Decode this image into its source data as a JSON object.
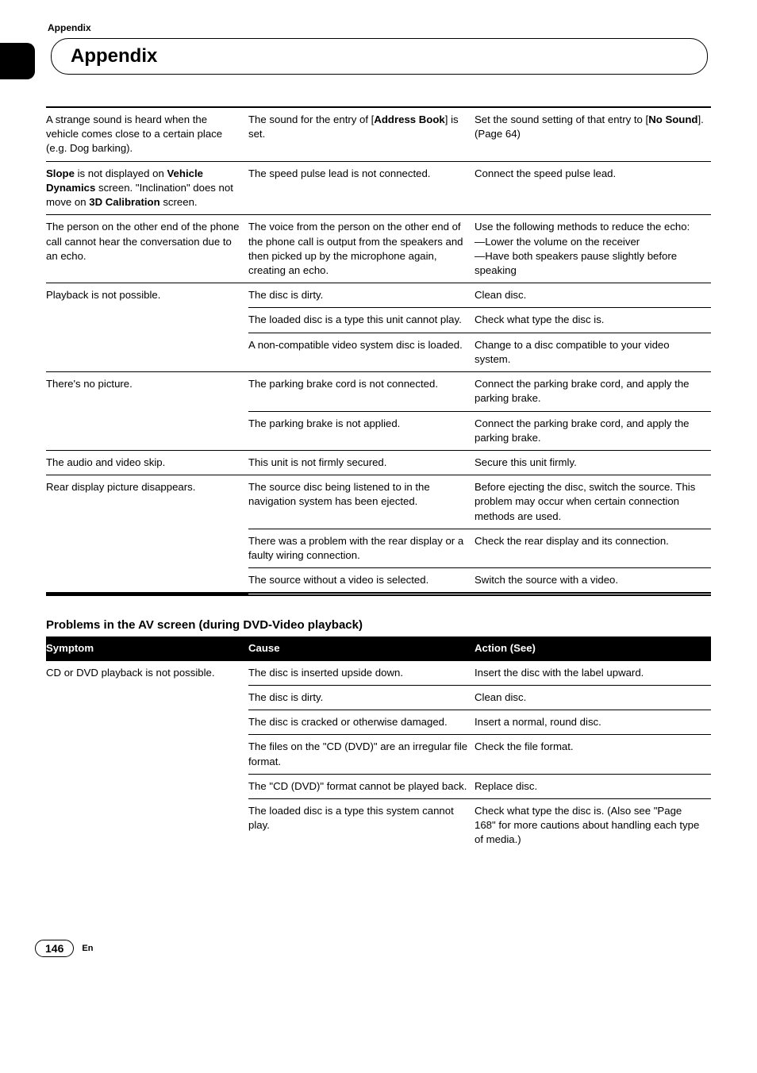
{
  "top_label": "Appendix",
  "title": "Appendix",
  "table1": {
    "rows": [
      {
        "sym": "A strange sound is heard when the vehicle comes close to a certain place (e.g. Dog barking).",
        "cause_html": "The sound for the entry of [<b>Address Book</b>] is set.",
        "action_html": "Set the sound setting of that entry to [<b>No Sound</b>]. (Page 64)"
      },
      {
        "sym_html": "<b>Slope</b> is not displayed on <b>Vehicle Dynamics</b> screen. \"Inclination\" does not move on <b>3D Calibration</b> screen.",
        "cause": "The speed pulse lead is not connected.",
        "action": "Connect the speed pulse lead."
      },
      {
        "sym": "The person on the other end of the phone call cannot hear the conversation due to an echo.",
        "cause": "The voice from the person on the other end of the phone call is output from the speakers and then picked up by the microphone again, creating an echo.",
        "action": "Use the following methods to reduce the echo:\n—Lower the volume on the receiver\n—Have both speakers pause slightly before speaking"
      },
      {
        "sym": "Playback is not possible.",
        "cause_rows": [
          {
            "cause": "The disc is dirty.",
            "action": "Clean disc."
          },
          {
            "cause": "The loaded disc is a type this unit cannot play.",
            "action": "Check what type the disc is."
          },
          {
            "cause": "A non-compatible video system disc is loaded.",
            "action": "Change to a disc compatible to your video system."
          }
        ]
      },
      {
        "sym": "There's no picture.",
        "cause_rows": [
          {
            "cause": "The parking brake cord is not connected.",
            "action": "Connect the parking brake cord, and apply the parking brake."
          },
          {
            "cause": "The parking brake is not applied.",
            "action": "Connect the parking brake cord, and apply the parking brake."
          }
        ]
      },
      {
        "sym": "The audio and video skip.",
        "cause": "This unit is not firmly secured.",
        "action": "Secure this unit firmly."
      },
      {
        "sym": "Rear display picture disappears.",
        "cause_rows": [
          {
            "cause": "The source disc being listened to in the navigation system has been ejected.",
            "action": "Before ejecting the disc, switch the source. This problem may occur when certain connection methods are used."
          },
          {
            "cause": "There was a problem with the rear display or a faulty wiring connection.",
            "action": "Check the rear display and its connection."
          },
          {
            "cause": "The source without a video is selected.",
            "action": "Switch the source with a video."
          }
        ]
      }
    ]
  },
  "section2_title": "Problems in the AV screen (during DVD-Video playback)",
  "headers": {
    "sym": "Symptom",
    "cause": "Cause",
    "action": "Action (See)"
  },
  "table2": {
    "sym": "CD or DVD playback is not possible.",
    "rows": [
      {
        "cause": "The disc is inserted upside down.",
        "action": "Insert the disc with the label upward."
      },
      {
        "cause": "The disc is dirty.",
        "action": "Clean disc."
      },
      {
        "cause": "The disc is cracked or otherwise damaged.",
        "action": "Insert a normal, round disc."
      },
      {
        "cause": "The files on the \"CD (DVD)\" are an irregular file format.",
        "action": "Check the file format."
      },
      {
        "cause": "The \"CD (DVD)\" format cannot be played back.",
        "action": "Replace disc."
      },
      {
        "cause": "The loaded disc is a type this system cannot play.",
        "action": "Check what type the disc is. (Also see \"Page 168\" for more cautions about handling each type of media.)"
      }
    ]
  },
  "page_number": "146",
  "lang": "En"
}
